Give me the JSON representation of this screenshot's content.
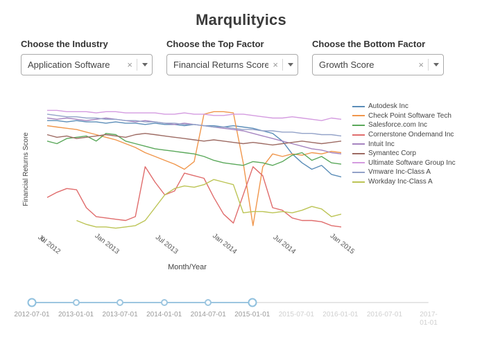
{
  "title": "Marqulityics",
  "controls": [
    {
      "label": "Choose the Industry",
      "value": "Application Software"
    },
    {
      "label": "Choose the Top Factor",
      "value": "Financial Returns Score"
    },
    {
      "label": "Choose the Bottom Factor",
      "value": "Growth Score"
    }
  ],
  "chart_data": {
    "type": "line",
    "title": "",
    "xlabel": "Month/Year",
    "ylabel": "Financial Returns Score",
    "y_origin_label": "0",
    "legend_position": "right",
    "grid": false,
    "x": [
      "2012-07",
      "2012-08",
      "2012-09",
      "2012-10",
      "2012-11",
      "2012-12",
      "2013-01",
      "2013-02",
      "2013-03",
      "2013-04",
      "2013-05",
      "2013-06",
      "2013-07",
      "2013-08",
      "2013-09",
      "2013-10",
      "2013-11",
      "2013-12",
      "2014-01",
      "2014-02",
      "2014-03",
      "2014-04",
      "2014-05",
      "2014-06",
      "2014-07",
      "2014-08",
      "2014-09",
      "2014-10",
      "2014-11",
      "2014-12",
      "2015-01"
    ],
    "x_ticks": {
      "indices": [
        0,
        6,
        12,
        18,
        24,
        30
      ],
      "labels": [
        "Jul 2012",
        "Jan 2013",
        "Jul 2013",
        "Jan 2014",
        "Jul 2014",
        "Jan 2015"
      ]
    },
    "ylim": [
      0,
      1
    ],
    "series": [
      {
        "name": "Autodesk Inc",
        "color": "#5b8db8",
        "values": [
          0.88,
          0.88,
          0.87,
          0.88,
          0.87,
          0.87,
          0.86,
          0.87,
          0.86,
          0.86,
          0.85,
          0.86,
          0.85,
          0.85,
          0.84,
          0.85,
          0.84,
          0.84,
          0.83,
          0.84,
          0.83,
          0.82,
          0.8,
          0.78,
          0.72,
          0.62,
          0.55,
          0.5,
          0.53,
          0.46,
          0.44
        ]
      },
      {
        "name": "Check Point Software Tech",
        "color": "#f0964b",
        "values": [
          0.84,
          0.83,
          0.82,
          0.81,
          0.79,
          0.77,
          0.75,
          0.73,
          0.7,
          0.67,
          0.63,
          0.6,
          0.57,
          0.54,
          0.5,
          0.56,
          0.93,
          0.95,
          0.95,
          0.94,
          0.55,
          0.06,
          0.52,
          0.62,
          0.6,
          0.62,
          0.61,
          0.63,
          0.62,
          0.64,
          0.63
        ]
      },
      {
        "name": "Salesforce.com Inc",
        "color": "#5aa85a",
        "values": [
          0.72,
          0.7,
          0.74,
          0.75,
          0.76,
          0.72,
          0.78,
          0.77,
          0.72,
          0.7,
          0.68,
          0.66,
          0.65,
          0.64,
          0.63,
          0.62,
          0.6,
          0.57,
          0.55,
          0.54,
          0.53,
          0.56,
          0.55,
          0.53,
          0.56,
          0.61,
          0.63,
          0.57,
          0.6,
          0.55,
          0.54
        ]
      },
      {
        "name": "Cornerstone Ondemand Inc",
        "color": "#e06c6c",
        "values": [
          0.28,
          0.32,
          0.35,
          0.34,
          0.2,
          0.13,
          0.12,
          0.11,
          0.1,
          0.13,
          0.52,
          0.4,
          0.3,
          0.33,
          0.47,
          0.45,
          0.43,
          0.28,
          0.15,
          0.08,
          0.3,
          0.52,
          0.45,
          0.2,
          0.18,
          0.12,
          0.1,
          0.1,
          0.09,
          0.06,
          0.05
        ]
      },
      {
        "name": "Intuit Inc",
        "color": "#a584c0",
        "values": [
          0.9,
          0.89,
          0.9,
          0.89,
          0.88,
          0.89,
          0.9,
          0.89,
          0.88,
          0.87,
          0.88,
          0.87,
          0.86,
          0.85,
          0.86,
          0.85,
          0.84,
          0.83,
          0.82,
          0.81,
          0.8,
          0.78,
          0.76,
          0.74,
          0.72,
          0.7,
          0.68,
          0.66,
          0.65,
          0.63,
          0.62
        ]
      },
      {
        "name": "Symantec Corp",
        "color": "#9d6b63",
        "values": [
          0.77,
          0.75,
          0.76,
          0.74,
          0.75,
          0.76,
          0.77,
          0.76,
          0.75,
          0.77,
          0.78,
          0.77,
          0.76,
          0.75,
          0.74,
          0.73,
          0.72,
          0.73,
          0.72,
          0.71,
          0.7,
          0.71,
          0.7,
          0.69,
          0.7,
          0.71,
          0.72,
          0.71,
          0.7,
          0.71,
          0.72
        ]
      },
      {
        "name": "Ultimate Software Group Inc",
        "color": "#d49be0",
        "values": [
          0.96,
          0.96,
          0.95,
          0.95,
          0.95,
          0.94,
          0.95,
          0.95,
          0.94,
          0.94,
          0.94,
          0.94,
          0.93,
          0.93,
          0.94,
          0.93,
          0.93,
          0.92,
          0.92,
          0.93,
          0.93,
          0.92,
          0.91,
          0.9,
          0.9,
          0.91,
          0.9,
          0.89,
          0.88,
          0.9,
          0.89
        ]
      },
      {
        "name": "Vmware Inc-Class A",
        "color": "#93a2c8",
        "values": [
          0.93,
          0.92,
          0.91,
          0.91,
          0.9,
          0.9,
          0.89,
          0.89,
          0.88,
          0.88,
          0.87,
          0.87,
          0.86,
          0.86,
          0.85,
          0.85,
          0.84,
          0.83,
          0.83,
          0.82,
          0.81,
          0.81,
          0.8,
          0.8,
          0.79,
          0.79,
          0.78,
          0.78,
          0.77,
          0.77,
          0.76
        ]
      },
      {
        "name": "Workday Inc-Class A",
        "color": "#bcc455",
        "values": [
          null,
          null,
          null,
          0.1,
          0.07,
          0.05,
          0.05,
          0.04,
          0.05,
          0.06,
          0.1,
          0.2,
          0.3,
          0.35,
          0.37,
          0.36,
          0.38,
          0.42,
          0.4,
          0.38,
          0.16,
          0.17,
          0.17,
          0.16,
          0.17,
          0.16,
          0.18,
          0.21,
          0.19,
          0.13,
          0.15
        ]
      }
    ]
  },
  "slider": {
    "ticks": [
      "2012-07-01",
      "2013-01-01",
      "2013-07-01",
      "2014-01-01",
      "2014-07-01",
      "2015-01-01",
      "2015-07-01",
      "2016-01-01",
      "2016-07-01",
      "2017-01-01"
    ],
    "active_range": [
      "2012-07-01",
      "2015-01-01"
    ],
    "active_tick_count": 6,
    "accent_color": "#9dc6e0"
  }
}
